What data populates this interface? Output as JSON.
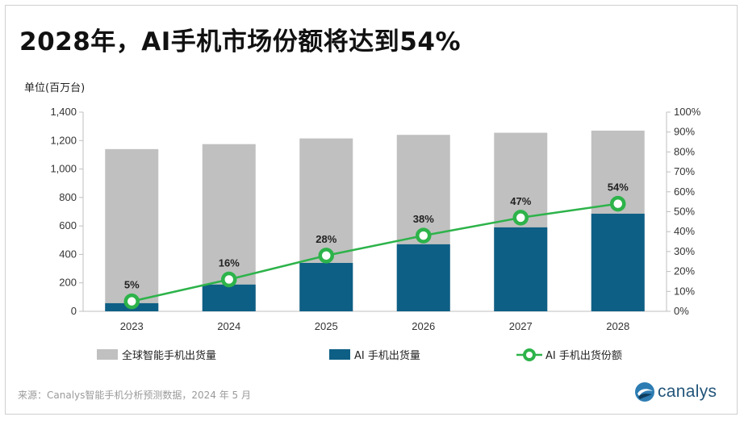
{
  "title": "2028年，AI手机市场份额将达到54%",
  "unit_label": "单位(百万台)",
  "source": "来源：Canalys智能手机分析预测数据，2024 年 5 月",
  "logo_text": "canalys",
  "colors": {
    "total": "#c0c0c0",
    "ai": "#0e5f85",
    "share_line": "#2db34a",
    "share_marker_fill": "#ffffff",
    "axis": "#bfbfbf"
  },
  "chart_data": {
    "type": "bar",
    "categories": [
      "2023",
      "2024",
      "2025",
      "2026",
      "2027",
      "2028"
    ],
    "series": [
      {
        "name": "全球智能手机出货量",
        "kind": "bar",
        "values": [
          1140,
          1175,
          1215,
          1240,
          1255,
          1270
        ]
      },
      {
        "name": "AI 手机出货量",
        "kind": "bar",
        "values": [
          57,
          188,
          340,
          471,
          590,
          686
        ]
      },
      {
        "name": "AI 手机出货份额",
        "kind": "line",
        "axis": "right",
        "values": [
          5,
          16,
          28,
          38,
          47,
          54
        ],
        "labels": [
          "5%",
          "16%",
          "28%",
          "38%",
          "47%",
          "54%"
        ]
      }
    ],
    "ylim": [
      0,
      1400
    ],
    "y_ticks": [
      "0",
      "200",
      "400",
      "600",
      "800",
      "1,000",
      "1,200",
      "1,400"
    ],
    "y2lim": [
      0,
      100
    ],
    "y2_ticks": [
      "0%",
      "10%",
      "20%",
      "30%",
      "40%",
      "50%",
      "60%",
      "70%",
      "80%",
      "90%",
      "100%"
    ],
    "ylabel": "单位(百万台)",
    "legend_position": "bottom"
  }
}
